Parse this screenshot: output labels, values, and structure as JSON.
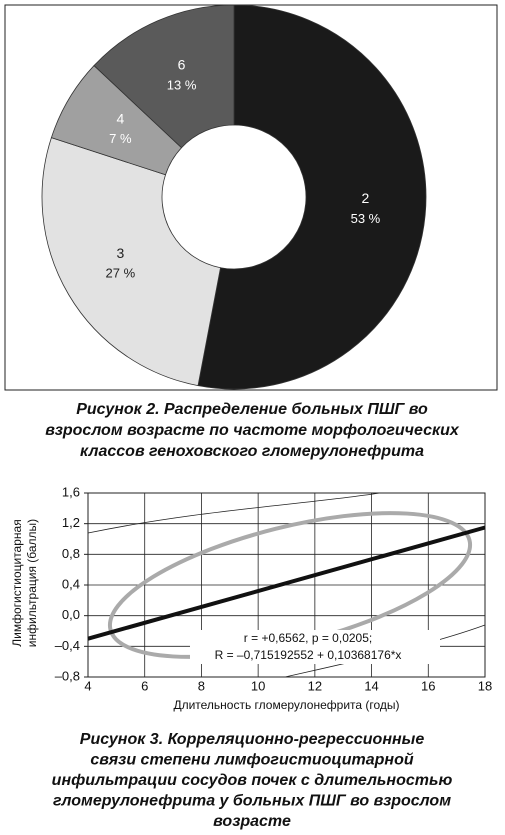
{
  "chart_data": [
    {
      "type": "pie",
      "categories": [
        "2",
        "3",
        "4",
        "6"
      ],
      "values": [
        53,
        27,
        7,
        13
      ],
      "value_labels": [
        "53 %",
        "27 %",
        "7 %",
        "13 %"
      ],
      "colors": [
        "#1a1a1a",
        "#e2e2e2",
        "#a0a0a0",
        "#5a5a5a"
      ],
      "caption": [
        "Рисунок 2. Распределение больных ПШГ во",
        "взрослом возрасте по частоте морфологических",
        "классов геноховского гломерулонефрита"
      ]
    },
    {
      "type": "line",
      "x": [
        4,
        18
      ],
      "series": [
        {
          "color": "#111111",
          "values": [
            -0.3,
            1.15
          ]
        }
      ],
      "xlim": [
        4,
        18
      ],
      "xticks": [
        4,
        6,
        8,
        10,
        12,
        14,
        16,
        18
      ],
      "ylim": [
        -0.8,
        1.6
      ],
      "yticks": [
        {
          "value": -0.8,
          "label": "–0,8"
        },
        {
          "value": -0.4,
          "label": "–0,4"
        },
        {
          "value": 0,
          "label": "0,0"
        },
        {
          "value": 0.4,
          "label": "0,4"
        },
        {
          "value": 0.8,
          "label": "0,8"
        },
        {
          "value": 1.2,
          "label": "1,2"
        },
        {
          "value": 1.6,
          "label": "1,6"
        }
      ],
      "grid": true,
      "xlabel": "Длительность гломерулонефрита (годы)",
      "ylabel": [
        "Лимфогистиоцитарная",
        "инфильтрация (баллы)"
      ],
      "annotation": [
        "r = +0,6562, p = 0,0205;",
        "R = –0,715192552 + 0,10368176*x"
      ],
      "caption": [
        "Рисунок 3. Корреляционно-регрессионные",
        "связи степени лимфогистиоцитарной",
        "инфильтрации сосудов почек с длительностью",
        "гломерулонефрита у больных ПШГ во взрослом",
        "возрасте"
      ]
    }
  ]
}
